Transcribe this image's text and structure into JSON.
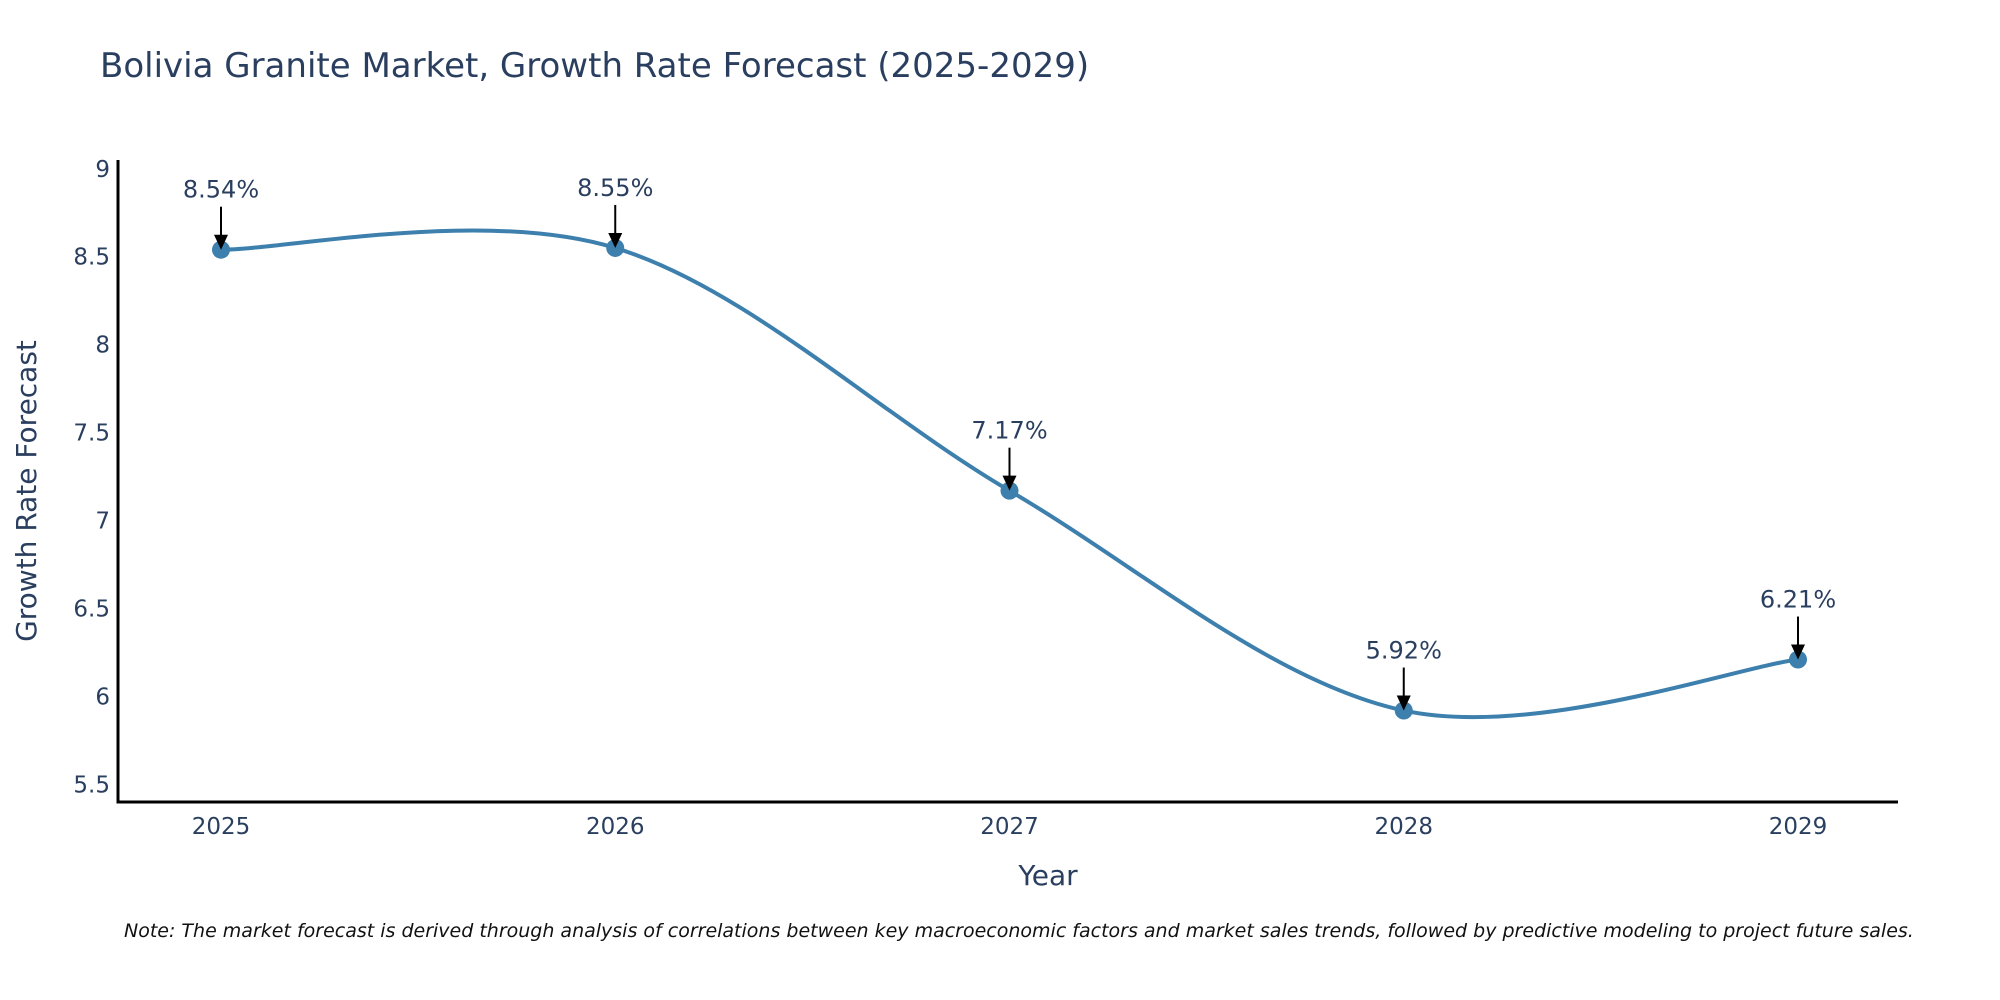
{
  "chart_data": {
    "type": "line",
    "title": "Bolivia Granite Market, Growth Rate Forecast (2025-2029)",
    "xlabel": "Year",
    "ylabel": "Growth Rate Forecast",
    "categories": [
      "2025",
      "2026",
      "2027",
      "2028",
      "2029"
    ],
    "series": [
      {
        "name": "Growth Rate Forecast",
        "values": [
          8.54,
          8.55,
          7.17,
          5.92,
          6.21
        ]
      }
    ],
    "data_labels": [
      "8.54%",
      "8.55%",
      "7.17%",
      "5.92%",
      "6.21%"
    ],
    "ylim": [
      5.4,
      9.05
    ],
    "yticks": [
      5.5,
      6,
      6.5,
      7,
      7.5,
      8,
      8.5,
      9
    ],
    "ytick_labels": [
      "5.5",
      "6",
      "6.5",
      "7",
      "7.5",
      "8",
      "8.5",
      "9"
    ],
    "grid": false,
    "line_color": "#3d7fad",
    "marker_color": "#3d7fad"
  },
  "note": "Note: The market forecast is derived through analysis of correlations between key macroeconomic factors and market sales trends, followed by predictive modeling to project future sales."
}
